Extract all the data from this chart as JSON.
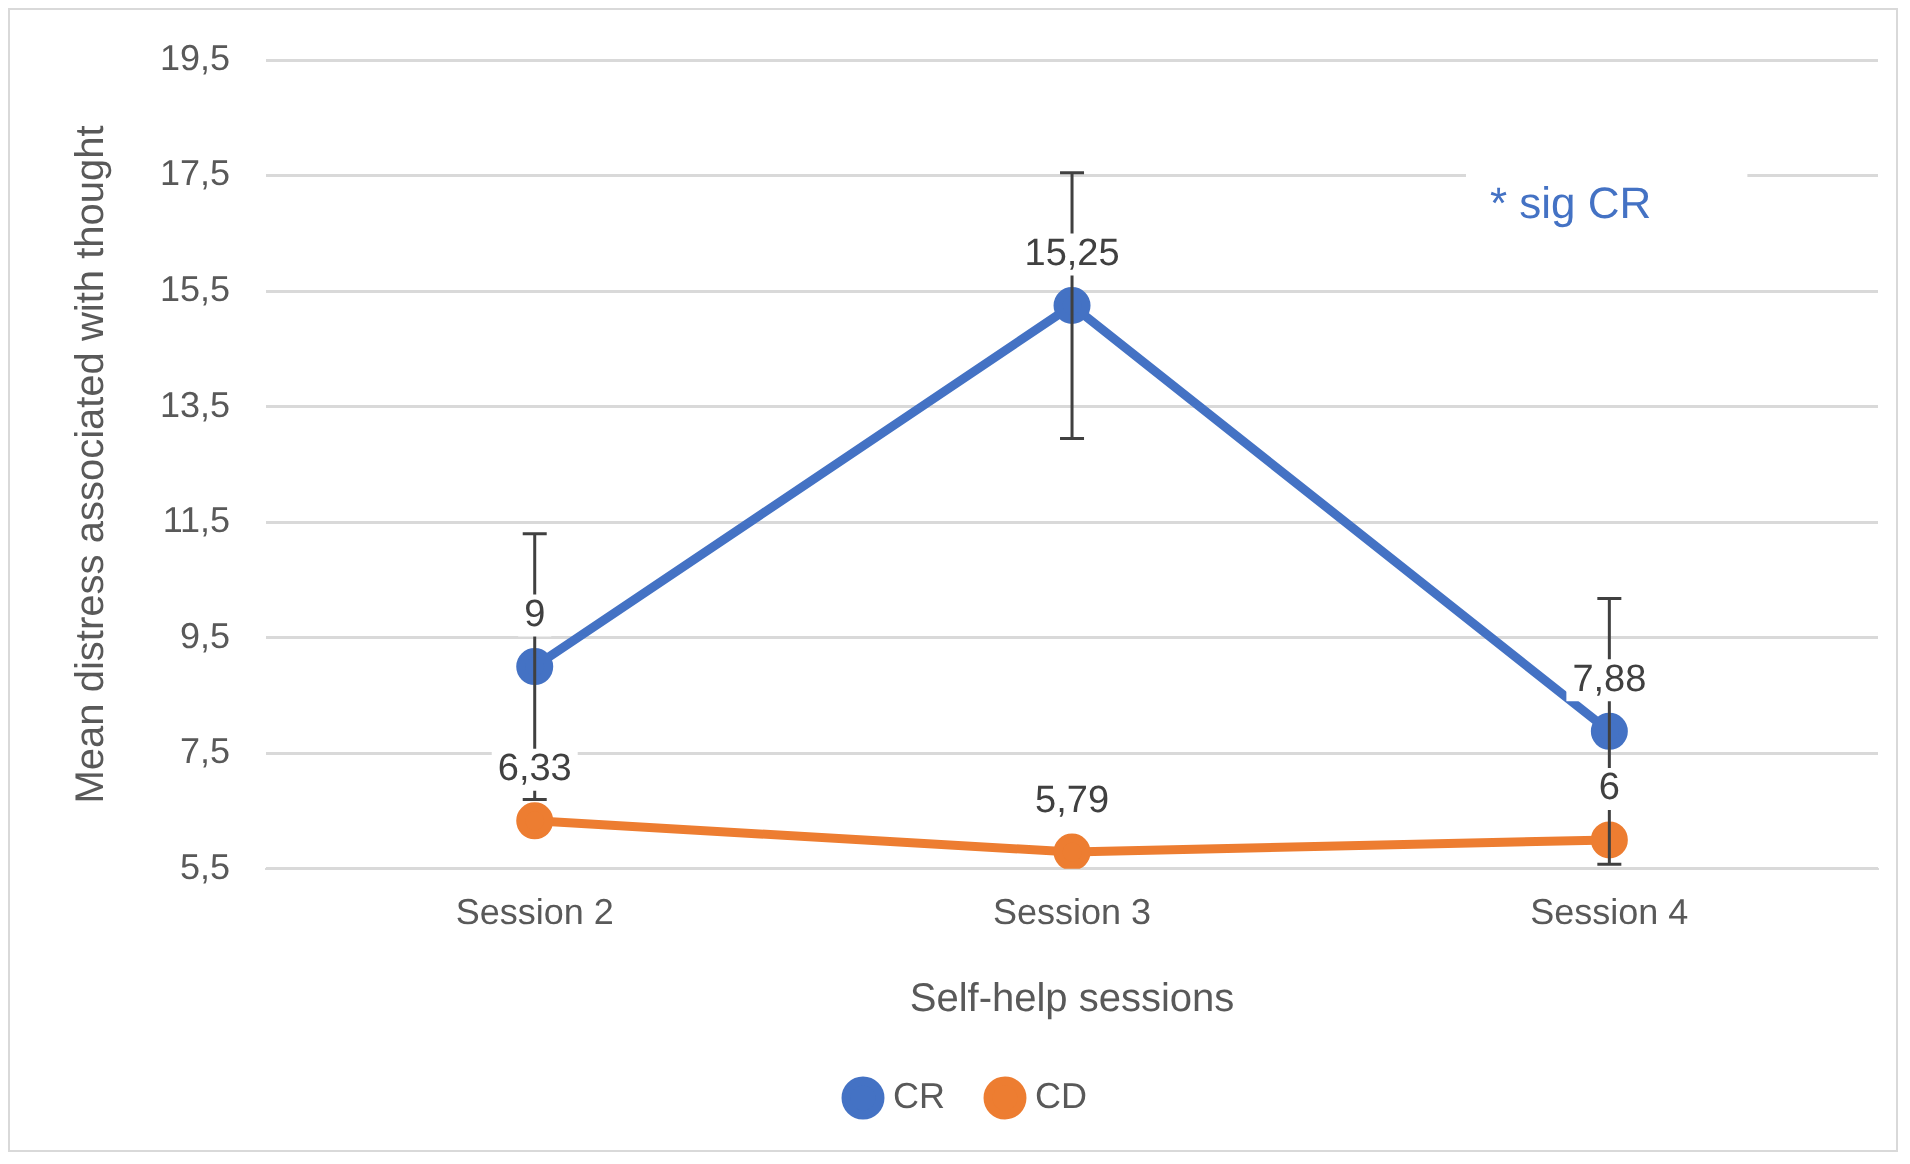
{
  "chart_data": {
    "type": "line",
    "xlabel": "Self-help sessions",
    "ylabel": "Mean distress associated with thought",
    "categories": [
      "Session 2",
      "Session 3",
      "Session 4"
    ],
    "series": [
      {
        "name": "CR",
        "color": "#4472c4",
        "values": [
          9,
          15.25,
          7.88
        ],
        "errors": [
          2.3,
          2.3,
          2.3
        ],
        "value_labels": [
          "9",
          "15,25",
          "7,88"
        ]
      },
      {
        "name": "CD",
        "color": "#ed7d31",
        "values": [
          6.33,
          5.79,
          6
        ],
        "value_labels": [
          "6,33",
          "5,79",
          "6"
        ]
      }
    ],
    "ylim": [
      5.5,
      19.5
    ],
    "yticks": [
      {
        "value": 5.5,
        "label": "5,5"
      },
      {
        "value": 7.5,
        "label": "7,5"
      },
      {
        "value": 9.5,
        "label": "9,5"
      },
      {
        "value": 11.5,
        "label": "11,5"
      },
      {
        "value": 13.5,
        "label": "13,5"
      },
      {
        "value": 15.5,
        "label": "15,5"
      },
      {
        "value": 17.5,
        "label": "17,5"
      },
      {
        "value": 19.5,
        "label": "19,5"
      }
    ],
    "annotations": [
      "* sig CR"
    ],
    "grid": "y",
    "legend": "bottom",
    "marker": "circle",
    "line_style": "solid"
  }
}
